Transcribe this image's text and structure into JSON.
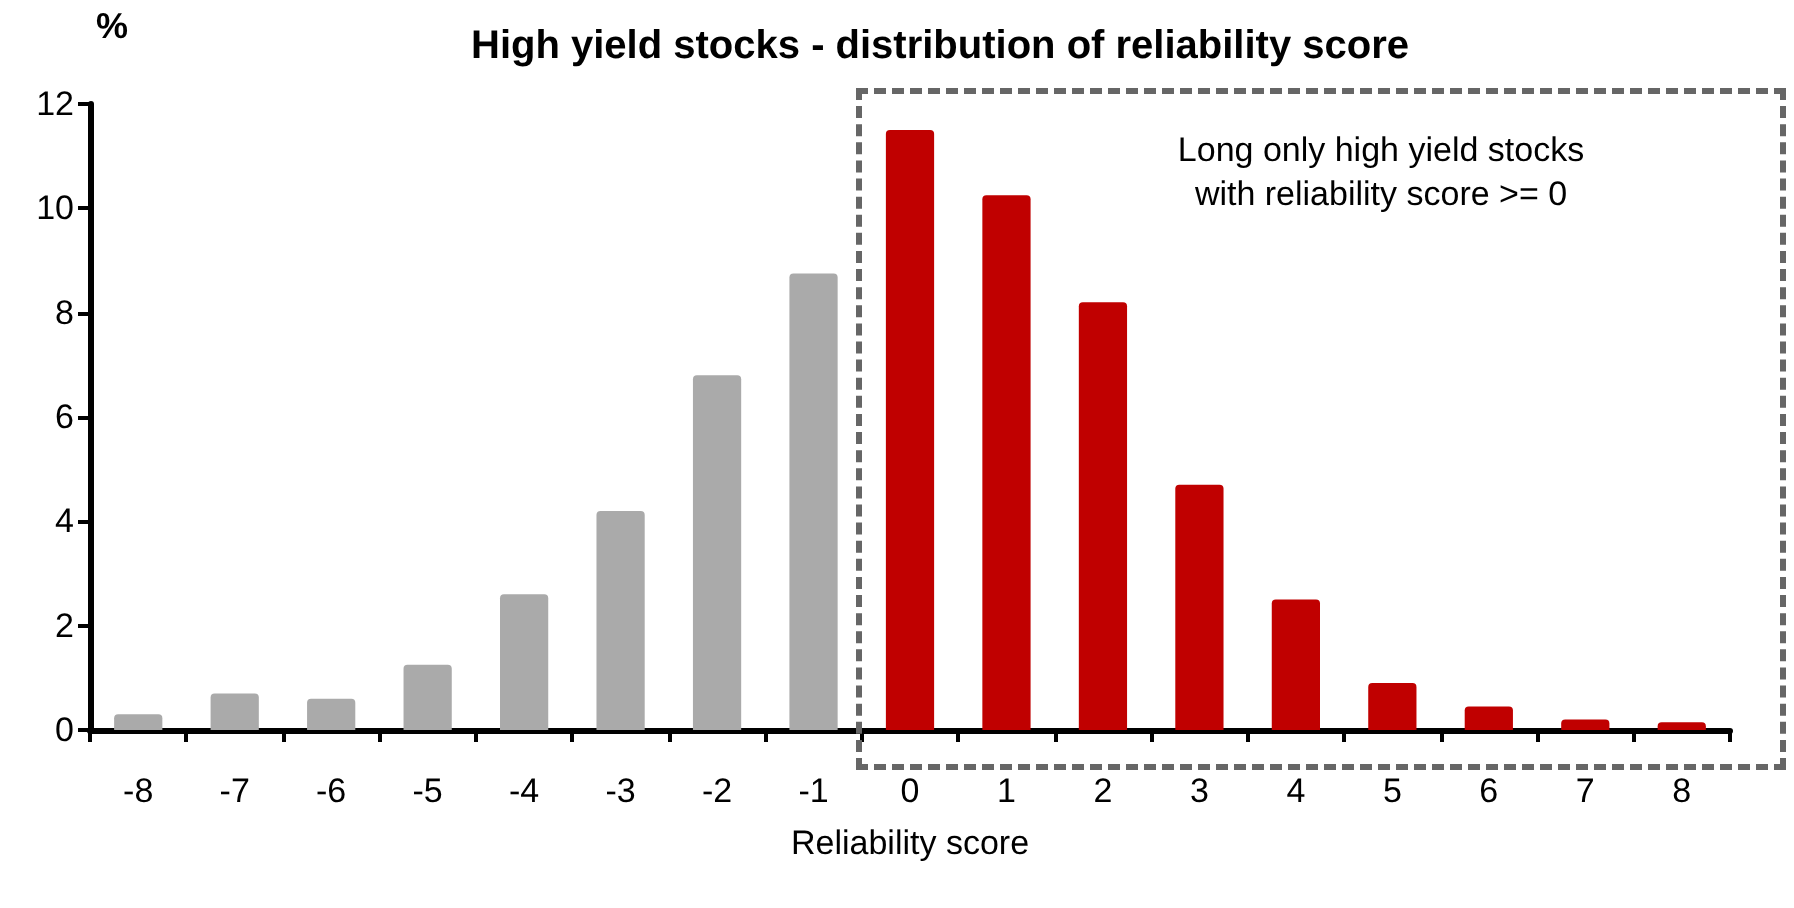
{
  "chart_data": {
    "type": "bar",
    "title": "High yield stocks - distribution of reliability score",
    "xlabel": "Reliability score",
    "ylabel": "%",
    "categories": [
      "-8",
      "-7",
      "-6",
      "-5",
      "-4",
      "-3",
      "-2",
      "-1",
      "0",
      "1",
      "2",
      "3",
      "4",
      "5",
      "6",
      "7",
      "8"
    ],
    "values": [
      0.3,
      0.7,
      0.6,
      1.25,
      2.6,
      4.2,
      6.8,
      8.75,
      11.5,
      10.25,
      8.2,
      4.7,
      2.5,
      0.9,
      0.45,
      0.2,
      0.15
    ],
    "colors": [
      "#aaaaaa",
      "#aaaaaa",
      "#aaaaaa",
      "#aaaaaa",
      "#aaaaaa",
      "#aaaaaa",
      "#aaaaaa",
      "#aaaaaa",
      "#c00000",
      "#c00000",
      "#c00000",
      "#c00000",
      "#c00000",
      "#c00000",
      "#c00000",
      "#c00000",
      "#c00000"
    ],
    "ylim": [
      0,
      12
    ],
    "yticks": [
      0,
      2,
      4,
      6,
      8,
      10,
      12
    ],
    "grid": false,
    "annotations": [
      "Long only high yield stocks\nwith reliability score >= 0"
    ]
  }
}
